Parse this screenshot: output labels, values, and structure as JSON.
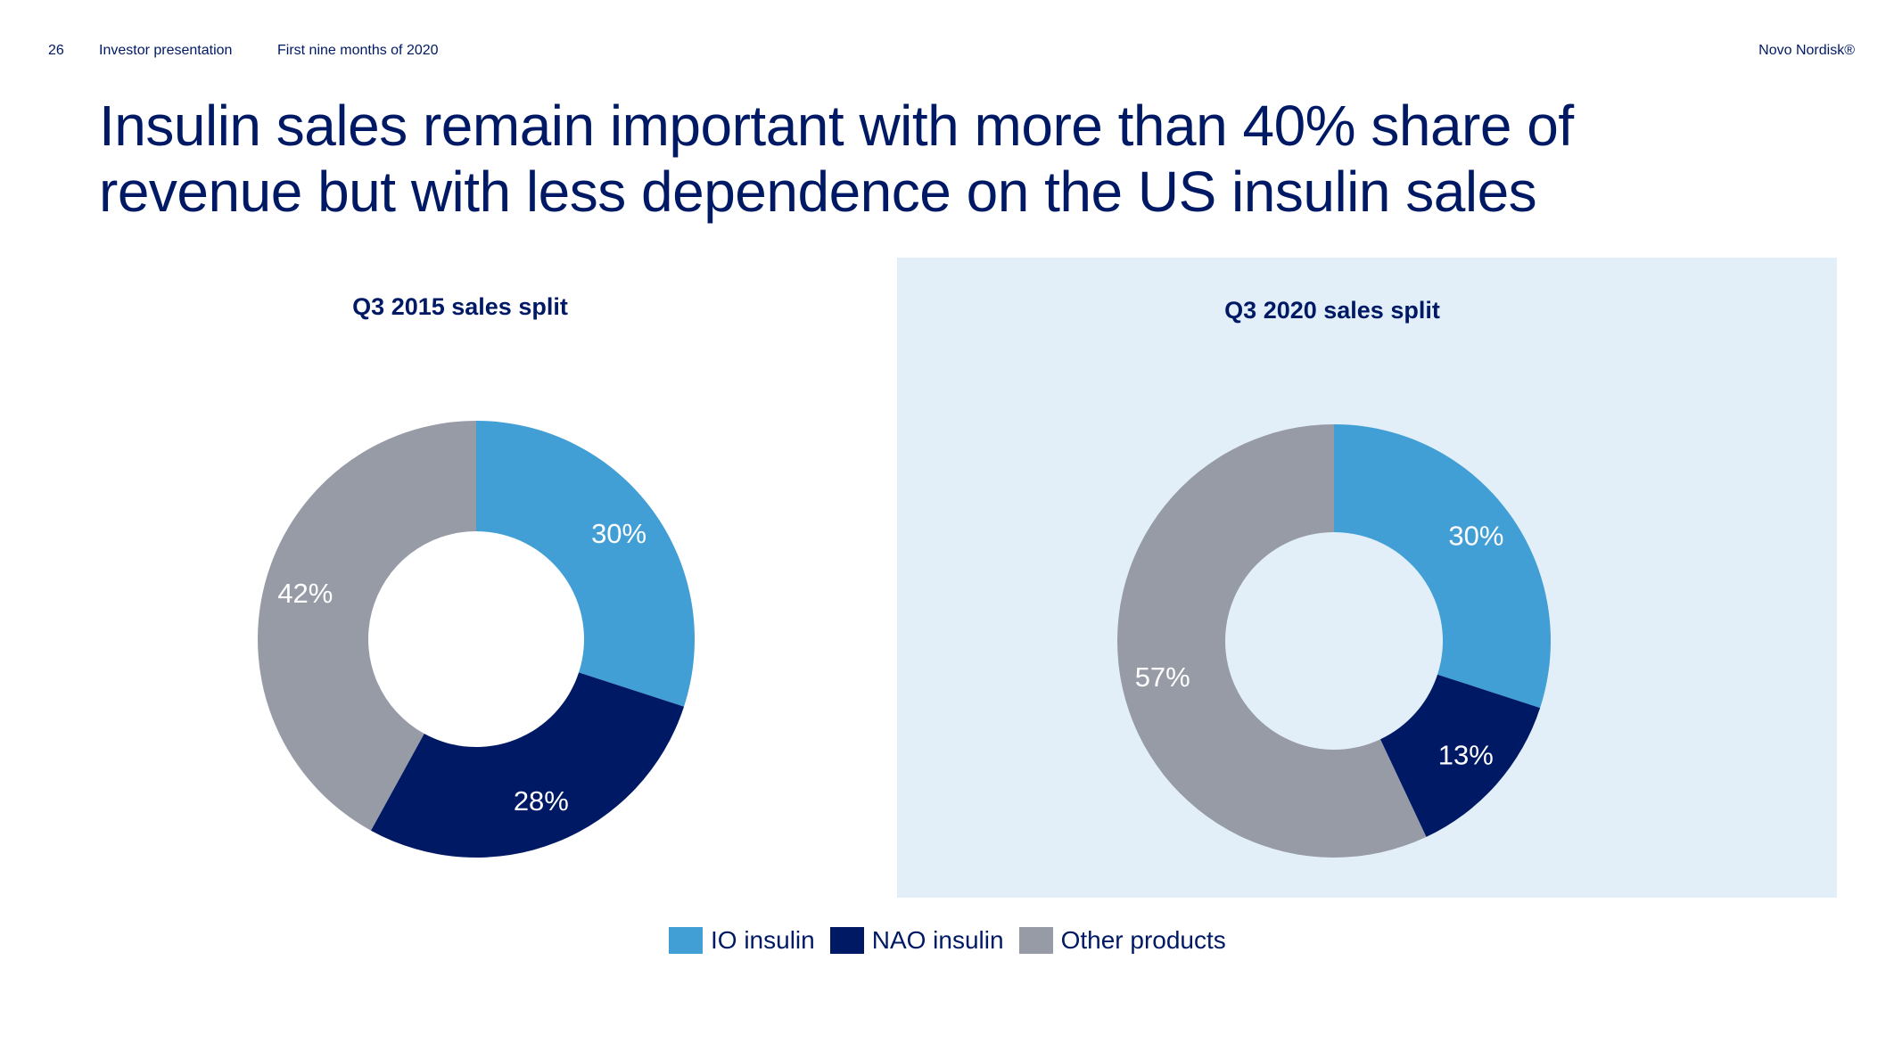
{
  "header": {
    "page_number": "26",
    "deck_title": "Investor presentation",
    "period": "First nine months of 2020",
    "brand": "Novo Nordisk®"
  },
  "headline": {
    "line1": "Insulin sales remain important with more than 40% share of",
    "line2": "revenue but with less dependence on the US insulin sales"
  },
  "colors": {
    "io_insulin": "#429fd6",
    "nao_insulin": "#001965",
    "other_products": "#969ba6",
    "panel_background": "#e2eff9",
    "text": "#001965"
  },
  "chart_data": [
    {
      "type": "pie",
      "style": "donut",
      "title": "Q3 2015 sales split",
      "categories": [
        "IO insulin",
        "NAO insulin",
        "Other products"
      ],
      "values": [
        30,
        28,
        42
      ],
      "labels": [
        "30%",
        "28%",
        "42%"
      ],
      "unit": "%",
      "start_angle": "12 o'clock",
      "direction": "clockwise",
      "legend": "bottom-center (shared)"
    },
    {
      "type": "pie",
      "style": "donut",
      "title": "Q3 2020 sales split",
      "categories": [
        "IO insulin",
        "NAO insulin",
        "Other products"
      ],
      "values": [
        30,
        13,
        57
      ],
      "labels": [
        "30%",
        "13%",
        "57%"
      ],
      "unit": "%",
      "start_angle": "12 o'clock",
      "direction": "clockwise",
      "legend": "bottom-center (shared)"
    }
  ],
  "legend": {
    "items": [
      {
        "label": "IO insulin",
        "color": "#429fd6"
      },
      {
        "label": "NAO insulin",
        "color": "#001965"
      },
      {
        "label": "Other products",
        "color": "#969ba6"
      }
    ]
  }
}
